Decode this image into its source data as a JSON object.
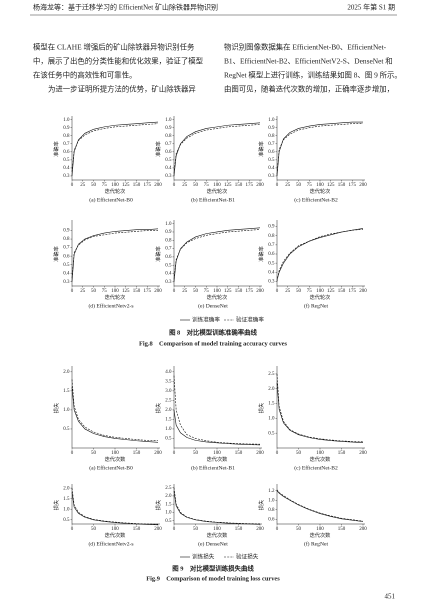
{
  "header": {
    "left": "杨海龙等：基于迁移学习的 EfficientNet 矿山除铁器异物识别",
    "right": "2025 年第 S1 期"
  },
  "body": {
    "left": [
      "模型在 CLAHE 增强后的矿山除铁器异物识别任务",
      "中，展示了出色的分类性能和优化效果，验证了模型",
      "在该任务中的高效性和可靠性。",
      "为进一步证明所提方法的优势，矿山除铁器异"
    ],
    "right": [
      "物识别图像数据集在 EfficientNet-B0、EfficientNet-",
      "B1、EfficientNet-B2、EfficientNetV2-S、DenseNet 和",
      "RegNet 模型上进行训练，训练结果如图 8、图 9 所示。",
      "由图可见，随着迭代次数的增加，正确率逐步增加，"
    ]
  },
  "figures": [
    {
      "type": "line",
      "xlabel": "迭代轮次",
      "ylabel": "准确率",
      "x": [
        0,
        5,
        15,
        30,
        50,
        75,
        100,
        125,
        150,
        175,
        200
      ],
      "legend": [
        {
          "label": "训练准确率",
          "dash": false
        },
        {
          "label": "验证准确率",
          "dash": true
        }
      ],
      "caption_cn": "图 8　对比模型训练准确率曲线",
      "caption_en": "Fig.8　Comparison of model training accuracy curves",
      "panels": [
        {
          "caption": "(a) EfficientNet-B0",
          "xlim": [
            0,
            200
          ],
          "xticks": [
            0,
            25,
            50,
            75,
            100,
            125,
            150,
            175,
            200
          ],
          "ylim": [
            0.25,
            1.02
          ],
          "yticks": [
            0.3,
            0.4,
            0.5,
            0.6,
            0.7,
            0.8,
            0.9,
            {
              "value": 1,
              "label": "1.0"
            }
          ],
          "series": [
            {
              "values": [
                0.3,
                0.6,
                0.75,
                0.83,
                0.88,
                0.91,
                0.93,
                0.94,
                0.95,
                0.96,
                0.97
              ]
            },
            {
              "values": [
                0.35,
                0.62,
                0.74,
                0.81,
                0.86,
                0.89,
                0.91,
                0.92,
                0.93,
                0.94,
                0.95
              ]
            }
          ]
        },
        {
          "caption": "(b) EfficientNet-B1",
          "xlim": [
            0,
            200
          ],
          "xticks": [
            0,
            25,
            50,
            75,
            100,
            125,
            150,
            175,
            200
          ],
          "ylim": [
            0.25,
            1.02
          ],
          "yticks": [
            0.3,
            0.4,
            0.5,
            0.6,
            0.7,
            0.8,
            0.9,
            {
              "value": 1,
              "label": "1.0"
            }
          ],
          "series": [
            {
              "values": [
                0.3,
                0.55,
                0.7,
                0.79,
                0.85,
                0.89,
                0.91,
                0.93,
                0.94,
                0.95,
                0.96
              ]
            },
            {
              "values": [
                0.33,
                0.58,
                0.69,
                0.77,
                0.83,
                0.87,
                0.89,
                0.91,
                0.92,
                0.93,
                0.94
              ]
            }
          ]
        },
        {
          "caption": "(c) EfficientNet-B2",
          "xlim": [
            0,
            200
          ],
          "xticks": [
            0,
            25,
            50,
            75,
            100,
            125,
            150,
            175,
            200
          ],
          "ylim": [
            0.25,
            1.02
          ],
          "yticks": [
            0.3,
            0.4,
            0.5,
            0.6,
            0.7,
            0.8,
            0.9,
            {
              "value": 1,
              "label": "1.0"
            }
          ],
          "series": [
            {
              "values": [
                0.3,
                0.6,
                0.76,
                0.84,
                0.89,
                0.92,
                0.94,
                0.95,
                0.96,
                0.97,
                0.97
              ]
            },
            {
              "values": [
                0.32,
                0.63,
                0.75,
                0.82,
                0.87,
                0.9,
                0.92,
                0.93,
                0.94,
                0.95,
                0.95
              ]
            }
          ]
        },
        {
          "caption": "(d) EfficientNetv2-s",
          "xlim": [
            0,
            200
          ],
          "xticks": [
            0,
            25,
            50,
            75,
            100,
            125,
            150,
            175,
            200
          ],
          "ylim": [
            0.25,
            1.0
          ],
          "yticks": [
            0.3,
            0.4,
            0.5,
            0.6,
            0.7,
            0.8,
            0.9
          ],
          "series": [
            {
              "values": [
                0.3,
                0.62,
                0.74,
                0.8,
                0.84,
                0.87,
                0.89,
                0.9,
                0.91,
                0.91,
                0.92
              ]
            },
            {
              "values": [
                0.34,
                0.64,
                0.73,
                0.79,
                0.83,
                0.85,
                0.87,
                0.88,
                0.89,
                0.9,
                0.9
              ]
            }
          ]
        },
        {
          "caption": "(e) DenseNet",
          "xlim": [
            0,
            200
          ],
          "xticks": [
            0,
            25,
            50,
            75,
            100,
            125,
            150,
            175,
            200
          ],
          "ylim": [
            0.25,
            1.02
          ],
          "yticks": [
            0.3,
            0.4,
            0.5,
            0.6,
            0.7,
            0.8,
            0.9,
            {
              "value": 1,
              "label": "1.0"
            }
          ],
          "series": [
            {
              "values": [
                0.3,
                0.55,
                0.7,
                0.78,
                0.84,
                0.88,
                0.9,
                0.92,
                0.93,
                0.94,
                0.95
              ]
            },
            {
              "values": [
                0.33,
                0.57,
                0.69,
                0.77,
                0.82,
                0.86,
                0.88,
                0.9,
                0.91,
                0.92,
                0.93
              ]
            }
          ]
        },
        {
          "caption": "(f) RegNet",
          "xlim": [
            0,
            200
          ],
          "xticks": [
            0,
            25,
            50,
            75,
            100,
            125,
            150,
            175,
            200
          ],
          "ylim": [
            0.25,
            0.95
          ],
          "yticks": [
            0.3,
            0.4,
            0.5,
            0.6,
            0.7,
            0.8,
            0.9
          ],
          "series": [
            {
              "values": [
                0.32,
                0.4,
                0.5,
                0.6,
                0.68,
                0.74,
                0.78,
                0.81,
                0.84,
                0.86,
                0.88
              ]
            },
            {
              "values": [
                0.3,
                0.42,
                0.52,
                0.61,
                0.69,
                0.74,
                0.79,
                0.82,
                0.84,
                0.86,
                0.87
              ]
            }
          ]
        }
      ]
    },
    {
      "type": "line",
      "xlabel": "迭代次数",
      "ylabel": "损失",
      "x": [
        0,
        5,
        15,
        30,
        50,
        75,
        100,
        125,
        150,
        175,
        200
      ],
      "legend": [
        {
          "label": "训练损失",
          "dash": false
        },
        {
          "label": "验证损失",
          "dash": true
        }
      ],
      "caption_cn": "图 9　对比模型训练损失曲线",
      "caption_en": "Fig.9　Comparison of model training loss curves",
      "panels": [
        {
          "caption": "(a) EfficientNet-B0",
          "xlim": [
            0,
            200
          ],
          "xticks": [
            0,
            50,
            100,
            150,
            200
          ],
          "ylim": [
            0,
            2.1
          ],
          "yticks": [
            0.5,
            {
              "value": 1,
              "label": "1.0"
            },
            1.5,
            {
              "value": 2,
              "label": "2.0"
            }
          ],
          "series": [
            {
              "values": [
                1.6,
                1.0,
                0.7,
                0.5,
                0.38,
                0.3,
                0.25,
                0.22,
                0.19,
                0.17,
                0.15
              ]
            },
            {
              "values": [
                1.8,
                1.1,
                0.75,
                0.55,
                0.42,
                0.33,
                0.28,
                0.25,
                0.22,
                0.2,
                0.19
              ]
            }
          ]
        },
        {
          "caption": "(b) EfficientNet-B1",
          "xlim": [
            0,
            200
          ],
          "xticks": [
            0,
            50,
            100,
            150,
            200
          ],
          "ylim": [
            0,
            4.2
          ],
          "yticks": [
            0.5,
            {
              "value": 1,
              "label": "1.0"
            },
            1.5,
            {
              "value": 2,
              "label": "2.0"
            },
            2.5,
            {
              "value": 3,
              "label": "3.0"
            },
            3.5,
            {
              "value": 4,
              "label": "4.0"
            }
          ],
          "series": [
            {
              "values": [
                2.0,
                1.2,
                0.8,
                0.55,
                0.4,
                0.32,
                0.27,
                0.23,
                0.2,
                0.18,
                0.16
              ]
            },
            {
              "values": [
                3.8,
                2.0,
                1.2,
                0.7,
                0.5,
                0.38,
                0.3,
                0.26,
                0.23,
                0.21,
                0.2
              ]
            }
          ]
        },
        {
          "caption": "(c) EfficientNet-B2",
          "xlim": [
            0,
            200
          ],
          "xticks": [
            0,
            50,
            100,
            150,
            200
          ],
          "ylim": [
            0,
            2.7
          ],
          "yticks": [
            0.5,
            {
              "value": 1,
              "label": "1.0"
            },
            1.5,
            {
              "value": 2,
              "label": "2.0"
            },
            2.5
          ],
          "series": [
            {
              "values": [
                2.2,
                1.3,
                0.85,
                0.6,
                0.45,
                0.35,
                0.29,
                0.25,
                0.22,
                0.2,
                0.18
              ]
            },
            {
              "values": [
                2.5,
                1.4,
                0.9,
                0.62,
                0.47,
                0.37,
                0.31,
                0.27,
                0.24,
                0.22,
                0.21
              ]
            }
          ]
        },
        {
          "caption": "(d) EfficientNetv2-s",
          "xlim": [
            0,
            200
          ],
          "xticks": [
            0,
            50,
            100,
            150,
            200
          ],
          "ylim": [
            0.3,
            2.1
          ],
          "yticks": [
            0.5,
            {
              "value": 1,
              "label": "1.0"
            },
            1.5,
            {
              "value": 2,
              "label": "2.0"
            }
          ],
          "series": [
            {
              "values": [
                1.8,
                1.1,
                0.8,
                0.62,
                0.5,
                0.42,
                0.37,
                0.33,
                0.3,
                0.28,
                0.26
              ]
            },
            {
              "values": [
                2.0,
                1.2,
                0.85,
                0.65,
                0.52,
                0.44,
                0.39,
                0.35,
                0.32,
                0.3,
                0.29
              ]
            }
          ]
        },
        {
          "caption": "(e) DenseNet",
          "xlim": [
            0,
            200
          ],
          "xticks": [
            0,
            50,
            100,
            150,
            200
          ],
          "ylim": [
            0.3,
            2.6
          ],
          "yticks": [
            0.5,
            {
              "value": 1,
              "label": "1.0"
            },
            1.5,
            {
              "value": 2,
              "label": "2.0"
            },
            2.5
          ],
          "series": [
            {
              "values": [
                2.3,
                1.4,
                0.95,
                0.7,
                0.55,
                0.45,
                0.39,
                0.35,
                0.32,
                0.3,
                0.28
              ]
            },
            {
              "values": [
                2.5,
                1.5,
                1.0,
                0.72,
                0.57,
                0.47,
                0.41,
                0.37,
                0.34,
                0.32,
                0.31
              ]
            }
          ]
        },
        {
          "caption": "(f) RegNet",
          "xlim": [
            0,
            200
          ],
          "xticks": [
            0,
            50,
            100,
            150,
            200
          ],
          "ylim": [
            0.5,
            1.3
          ],
          "yticks": [
            0.6,
            0.8,
            {
              "value": 1,
              "label": "1.0"
            },
            1.2
          ],
          "series": [
            {
              "values": [
                1.2,
                1.15,
                1.08,
                1.0,
                0.9,
                0.8,
                0.72,
                0.66,
                0.61,
                0.58,
                0.55
              ]
            },
            {
              "values": [
                1.22,
                1.16,
                1.1,
                1.01,
                0.91,
                0.81,
                0.73,
                0.67,
                0.62,
                0.59,
                0.56
              ]
            }
          ]
        }
      ]
    }
  ],
  "page_number": "451"
}
